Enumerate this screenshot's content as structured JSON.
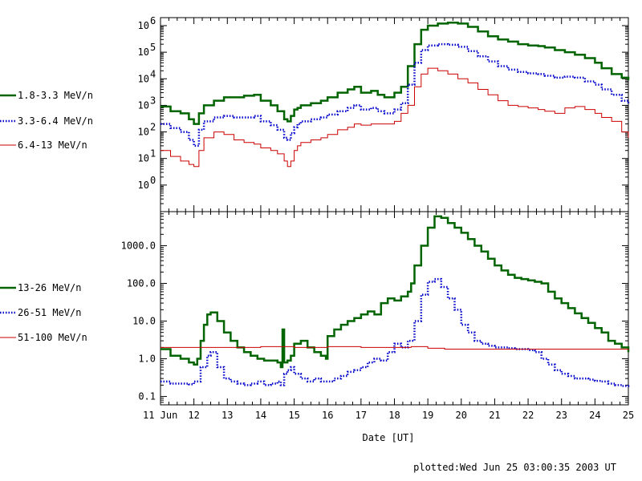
{
  "chart_data": [
    {
      "type": "line",
      "yscale": "log",
      "ylim": [
        0.1,
        2000000
      ],
      "xlim": [
        11,
        25
      ],
      "yticks": [
        {
          "value": 1,
          "label": "10",
          "exp": "0"
        },
        {
          "value": 10,
          "label": "10",
          "exp": "1"
        },
        {
          "value": 100,
          "label": "10",
          "exp": "2"
        },
        {
          "value": 1000,
          "label": "10",
          "exp": "3"
        },
        {
          "value": 10000,
          "label": "10",
          "exp": "4"
        },
        {
          "value": 100000,
          "label": "10",
          "exp": "5"
        },
        {
          "value": 1000000,
          "label": "10",
          "exp": "6"
        }
      ],
      "series": [
        {
          "name": "1.8-3.3 MeV/n",
          "color": "#006400",
          "style": "solid",
          "x": [
            11.0,
            11.3,
            11.6,
            11.85,
            12.0,
            12.15,
            12.3,
            12.6,
            12.9,
            13.2,
            13.5,
            13.8,
            14.0,
            14.3,
            14.5,
            14.7,
            14.8,
            14.9,
            15.0,
            15.1,
            15.2,
            15.5,
            15.8,
            16.0,
            16.3,
            16.6,
            16.8,
            17.0,
            17.3,
            17.5,
            17.7,
            18.0,
            18.2,
            18.4,
            18.6,
            18.8,
            19.0,
            19.3,
            19.6,
            19.9,
            20.2,
            20.5,
            20.8,
            21.1,
            21.4,
            21.7,
            22.0,
            22.3,
            22.5,
            22.8,
            23.1,
            23.4,
            23.7,
            24.0,
            24.2,
            24.5,
            24.8,
            25.0
          ],
          "y": [
            900,
            600,
            500,
            300,
            200,
            500,
            1000,
            1500,
            2000,
            2000,
            2300,
            2500,
            1500,
            1000,
            600,
            300,
            250,
            400,
            700,
            800,
            1000,
            1200,
            1500,
            2000,
            3000,
            4000,
            5000,
            3000,
            3500,
            2500,
            2000,
            3000,
            5000,
            30000,
            200000,
            700000,
            1000000,
            1200000,
            1300000,
            1200000,
            900000,
            600000,
            400000,
            300000,
            250000,
            200000,
            180000,
            170000,
            150000,
            120000,
            100000,
            80000,
            60000,
            40000,
            25000,
            15000,
            11000,
            9000
          ]
        },
        {
          "name": "3.3-6.4 MeV/n",
          "color": "#0000cc",
          "style": "dotted",
          "x": [
            11.0,
            11.3,
            11.6,
            11.85,
            12.0,
            12.15,
            12.3,
            12.6,
            12.9,
            13.2,
            13.5,
            13.8,
            14.0,
            14.3,
            14.5,
            14.7,
            14.8,
            14.9,
            15.0,
            15.1,
            15.2,
            15.5,
            15.8,
            16.0,
            16.3,
            16.6,
            16.8,
            17.0,
            17.3,
            17.5,
            17.7,
            18.0,
            18.2,
            18.4,
            18.6,
            18.8,
            19.0,
            19.3,
            19.6,
            19.9,
            20.2,
            20.5,
            20.8,
            21.1,
            21.4,
            21.7,
            22.0,
            22.3,
            22.5,
            22.8,
            23.1,
            23.4,
            23.7,
            24.0,
            24.2,
            24.5,
            24.8,
            25.0
          ],
          "y": [
            200,
            140,
            100,
            50,
            30,
            120,
            250,
            350,
            400,
            350,
            350,
            400,
            250,
            180,
            120,
            60,
            50,
            90,
            150,
            200,
            250,
            300,
            350,
            450,
            600,
            800,
            1000,
            700,
            800,
            600,
            500,
            700,
            1200,
            6000,
            40000,
            120000,
            180000,
            200000,
            190000,
            160000,
            110000,
            70000,
            45000,
            30000,
            22000,
            18000,
            16000,
            15000,
            13000,
            11000,
            12000,
            11000,
            8000,
            6000,
            4000,
            2500,
            1500,
            1100
          ]
        },
        {
          "name": "6.4-13 MeV/n",
          "color": "#cc0000",
          "style": "solid",
          "x": [
            11.0,
            11.3,
            11.6,
            11.85,
            12.0,
            12.15,
            12.3,
            12.6,
            12.9,
            13.2,
            13.5,
            13.8,
            14.0,
            14.3,
            14.5,
            14.7,
            14.8,
            14.9,
            15.0,
            15.1,
            15.2,
            15.5,
            15.8,
            16.0,
            16.3,
            16.6,
            16.8,
            17.0,
            17.3,
            17.5,
            17.7,
            18.0,
            18.2,
            18.4,
            18.6,
            18.8,
            19.0,
            19.3,
            19.6,
            19.9,
            20.2,
            20.5,
            20.8,
            21.1,
            21.4,
            21.7,
            22.0,
            22.3,
            22.5,
            22.8,
            23.1,
            23.4,
            23.7,
            24.0,
            24.2,
            24.5,
            24.8,
            25.0
          ],
          "y": [
            20,
            12,
            8,
            6,
            5,
            20,
            60,
            100,
            80,
            50,
            40,
            35,
            25,
            20,
            15,
            8,
            5,
            8,
            20,
            30,
            40,
            50,
            60,
            80,
            120,
            150,
            200,
            180,
            200,
            200,
            200,
            250,
            500,
            1000,
            5000,
            15000,
            25000,
            20000,
            15000,
            10000,
            7000,
            4000,
            2500,
            1500,
            1000,
            900,
            800,
            700,
            600,
            500,
            800,
            900,
            700,
            500,
            350,
            250,
            100,
            60
          ]
        }
      ]
    },
    {
      "type": "line",
      "yscale": "log",
      "ylim": [
        0.06,
        8000
      ],
      "xlim": [
        11,
        25
      ],
      "xlabel": "Date [UT]",
      "xticks": [
        {
          "value": 11,
          "label": "11 Jun"
        },
        {
          "value": 12,
          "label": "12"
        },
        {
          "value": 13,
          "label": "13"
        },
        {
          "value": 14,
          "label": "14"
        },
        {
          "value": 15,
          "label": "15"
        },
        {
          "value": 16,
          "label": "16"
        },
        {
          "value": 17,
          "label": "17"
        },
        {
          "value": 18,
          "label": "18"
        },
        {
          "value": 19,
          "label": "19"
        },
        {
          "value": 20,
          "label": "20"
        },
        {
          "value": 21,
          "label": "21"
        },
        {
          "value": 22,
          "label": "22"
        },
        {
          "value": 23,
          "label": "23"
        },
        {
          "value": 24,
          "label": "24"
        },
        {
          "value": 25,
          "label": "25"
        }
      ],
      "yticks": [
        {
          "value": 0.1,
          "label": "0.1"
        },
        {
          "value": 1,
          "label": "1.0"
        },
        {
          "value": 10,
          "label": "10.0"
        },
        {
          "value": 100,
          "label": "100.0"
        },
        {
          "value": 1000,
          "label": "1000.0"
        }
      ],
      "series": [
        {
          "name": "13-26 MeV/n",
          "color": "#006400",
          "style": "solid",
          "x": [
            11.0,
            11.3,
            11.6,
            11.85,
            12.0,
            12.1,
            12.2,
            12.3,
            12.4,
            12.5,
            12.7,
            12.9,
            13.1,
            13.3,
            13.5,
            13.7,
            13.9,
            14.1,
            14.3,
            14.5,
            14.6,
            14.65,
            14.7,
            14.8,
            14.9,
            15.0,
            15.2,
            15.4,
            15.6,
            15.8,
            15.95,
            16.0,
            16.2,
            16.4,
            16.6,
            16.8,
            17.0,
            17.2,
            17.4,
            17.6,
            17.8,
            18.0,
            18.2,
            18.4,
            18.5,
            18.6,
            18.8,
            19.0,
            19.2,
            19.4,
            19.6,
            19.8,
            20.0,
            20.2,
            20.4,
            20.6,
            20.8,
            21.0,
            21.2,
            21.4,
            21.6,
            21.8,
            22.0,
            22.2,
            22.4,
            22.6,
            22.8,
            23.0,
            23.2,
            23.4,
            23.6,
            23.8,
            24.0,
            24.2,
            24.4,
            24.6,
            24.8,
            25.0
          ],
          "y": [
            1.8,
            1.2,
            1.0,
            0.8,
            0.7,
            1.0,
            3.0,
            8.0,
            15.0,
            17.0,
            10.0,
            5.0,
            3.0,
            2.0,
            1.5,
            1.2,
            1.0,
            0.9,
            0.9,
            0.8,
            0.6,
            6.0,
            0.8,
            0.9,
            1.2,
            2.5,
            3.0,
            2.0,
            1.5,
            1.2,
            1.0,
            4.0,
            6.0,
            8.0,
            10.0,
            12.0,
            15.0,
            18.0,
            15.0,
            30.0,
            40.0,
            35.0,
            45.0,
            60.0,
            100.0,
            300.0,
            1000.0,
            3000.0,
            6000.0,
            5500.0,
            4000.0,
            3000.0,
            2200.0,
            1500.0,
            1000.0,
            700.0,
            450.0,
            300.0,
            220.0,
            170.0,
            140.0,
            130.0,
            120.0,
            110.0,
            100.0,
            60.0,
            40.0,
            30.0,
            22.0,
            16.0,
            12.0,
            9.0,
            6.5,
            5.0,
            3.0,
            2.5,
            2.0,
            1.5
          ]
        },
        {
          "name": "26-51 MeV/n",
          "color": "#0000cc",
          "style": "dotted",
          "x": [
            11.0,
            11.3,
            11.6,
            11.85,
            12.0,
            12.2,
            12.4,
            12.5,
            12.7,
            12.9,
            13.1,
            13.3,
            13.5,
            13.7,
            13.9,
            14.1,
            14.3,
            14.5,
            14.6,
            14.7,
            14.8,
            14.9,
            15.0,
            15.2,
            15.4,
            15.6,
            15.8,
            16.0,
            16.2,
            16.4,
            16.6,
            16.8,
            17.0,
            17.2,
            17.4,
            17.6,
            17.8,
            18.0,
            18.2,
            18.4,
            18.6,
            18.8,
            19.0,
            19.2,
            19.4,
            19.6,
            19.8,
            20.0,
            20.2,
            20.4,
            20.6,
            20.8,
            21.0,
            21.2,
            21.4,
            21.6,
            21.8,
            22.0,
            22.2,
            22.4,
            22.6,
            22.8,
            23.0,
            23.2,
            23.4,
            23.6,
            23.8,
            24.0,
            24.2,
            24.4,
            24.6,
            24.8,
            25.0
          ],
          "y": [
            0.25,
            0.22,
            0.22,
            0.21,
            0.25,
            0.6,
            1.2,
            1.5,
            0.6,
            0.3,
            0.25,
            0.22,
            0.2,
            0.22,
            0.25,
            0.2,
            0.22,
            0.25,
            0.2,
            0.4,
            0.5,
            0.6,
            0.4,
            0.3,
            0.25,
            0.3,
            0.25,
            0.25,
            0.3,
            0.35,
            0.45,
            0.5,
            0.6,
            0.8,
            1.0,
            0.9,
            1.5,
            2.5,
            2.0,
            3.0,
            10.0,
            50.0,
            110.0,
            130.0,
            80.0,
            40.0,
            20.0,
            8.0,
            5.0,
            3.0,
            2.5,
            2.2,
            2.0,
            2.0,
            1.9,
            1.8,
            1.8,
            1.7,
            1.5,
            1.0,
            0.7,
            0.5,
            0.4,
            0.35,
            0.3,
            0.3,
            0.28,
            0.26,
            0.25,
            0.22,
            0.2,
            0.19,
            0.2
          ]
        },
        {
          "name": "51-100 MeV/n",
          "color": "#cc0000",
          "style": "solid",
          "x": [
            11.0,
            12.0,
            13.0,
            14.0,
            15.0,
            16.0,
            17.0,
            18.0,
            18.5,
            19.0,
            19.5,
            20.0,
            21.0,
            22.0,
            23.0,
            24.0,
            25.0
          ],
          "y": [
            2.0,
            2.0,
            2.0,
            2.1,
            2.0,
            2.1,
            2.0,
            2.0,
            2.1,
            1.9,
            1.8,
            1.8,
            1.8,
            1.8,
            1.8,
            1.8,
            1.7
          ]
        }
      ]
    }
  ],
  "footer": {
    "plotted": "plotted:Wed Jun 25 03:00:35 2003 UT"
  }
}
